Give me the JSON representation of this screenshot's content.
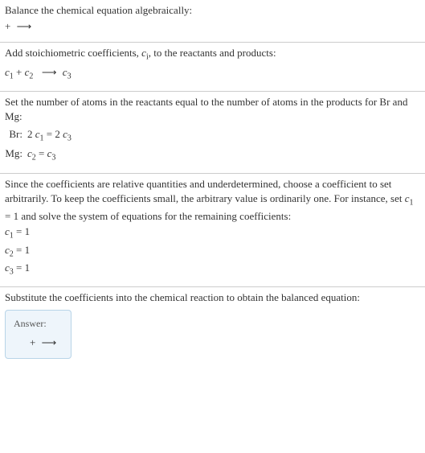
{
  "section1": {
    "title": "Balance the chemical equation algebraically:",
    "eq_plus": "+",
    "eq_arrow": "⟶"
  },
  "section2": {
    "intro_a": "Add stoichiometric coefficients, ",
    "ci": "c",
    "ci_sub": "i",
    "intro_b": ", to the reactants and products:",
    "c1": "c",
    "c1_sub": "1",
    "plus": " + ",
    "c2": "c",
    "c2_sub": "2",
    "arrow": "⟶",
    "c3": "c",
    "c3_sub": "3"
  },
  "section3": {
    "intro": "Set the number of atoms in the reactants equal to the number of atoms in the products for Br and Mg:",
    "rows": [
      {
        "label": "Br:",
        "lhs_a": "2 ",
        "c1": "c",
        "c1_sub": "1",
        "eq": " = ",
        "rhs_a": "2 ",
        "c3": "c",
        "c3_sub": "3"
      },
      {
        "label": "Mg:",
        "lhs_a": "",
        "c1": "c",
        "c1_sub": "2",
        "eq": " = ",
        "rhs_a": "",
        "c3": "c",
        "c3_sub": "3"
      }
    ]
  },
  "section4": {
    "intro_a": "Since the coefficients are relative quantities and underdetermined, choose a coefficient to set arbitrarily. To keep the coefficients small, the arbitrary value is ordinarily one. For instance, set ",
    "c1": "c",
    "c1_sub": "1",
    "intro_b": " = 1 and solve the system of equations for the remaining coefficients:",
    "lines": [
      {
        "c": "c",
        "sub": "1",
        "rest": " = 1"
      },
      {
        "c": "c",
        "sub": "2",
        "rest": " = 1"
      },
      {
        "c": "c",
        "sub": "3",
        "rest": " = 1"
      }
    ]
  },
  "section5": {
    "intro": "Substitute the coefficients into the chemical reaction to obtain the balanced equation:",
    "answer_label": "Answer:",
    "eq_plus": "+",
    "eq_arrow": "⟶"
  }
}
